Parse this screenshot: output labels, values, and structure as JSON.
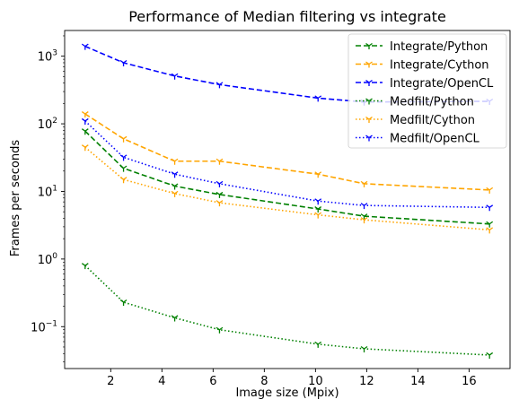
{
  "chart_data": {
    "type": "line",
    "title": "Performance of Median filtering vs integrate",
    "xlabel": "Image size (Mpix)",
    "ylabel": "Frames per seconds",
    "x": [
      1.0,
      2.5,
      4.5,
      6.25,
      10.1,
      11.9,
      16.8
    ],
    "xlim": [
      0.2,
      17.6
    ],
    "ylim": [
      0.024,
      2400
    ],
    "yscale": "log",
    "x_ticks": [
      "2",
      "4",
      "6",
      "8",
      "10",
      "12",
      "14",
      "16"
    ],
    "y_ticks": [
      "10^-1",
      "10^0",
      "10^1",
      "10^2",
      "10^3"
    ],
    "grid": false,
    "legend_position": "top-right",
    "series": [
      {
        "name": "Integrate/Python",
        "color": "#008000",
        "style": "dashed",
        "values": [
          78,
          22,
          12,
          9,
          5.5,
          4.3,
          3.3
        ]
      },
      {
        "name": "Integrate/Cython",
        "color": "#ffa500",
        "style": "dashed",
        "values": [
          140,
          60,
          28,
          28,
          18,
          13,
          10.5
        ]
      },
      {
        "name": "Integrate/OpenCL",
        "color": "#0000ff",
        "style": "dashed",
        "values": [
          1400,
          800,
          510,
          380,
          240,
          210,
          215
        ]
      },
      {
        "name": "Medfilt/Python",
        "color": "#008000",
        "style": "dotted",
        "values": [
          0.8,
          0.23,
          0.135,
          0.09,
          0.055,
          0.047,
          0.038
        ]
      },
      {
        "name": "Medfilt/Cython",
        "color": "#ffa500",
        "style": "dotted",
        "values": [
          45,
          15,
          9.3,
          6.8,
          4.5,
          3.8,
          2.7
        ]
      },
      {
        "name": "Medfilt/OpenCL",
        "color": "#0000ff",
        "style": "dotted",
        "values": [
          110,
          32,
          18,
          13,
          7.2,
          6.2,
          5.8
        ]
      }
    ]
  }
}
